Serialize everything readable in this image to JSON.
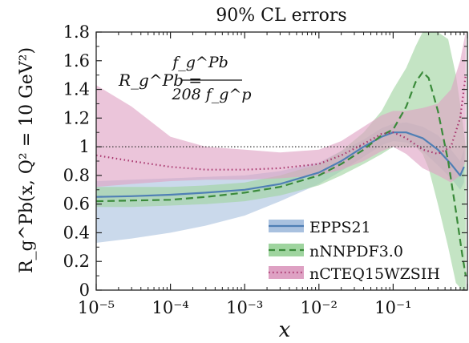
{
  "chart_data": {
    "type": "line",
    "title": "90% CL errors",
    "xlabel": "x",
    "ylabel": "R_g^Pb(x, Q² = 10 GeV²)",
    "x_scale": "log",
    "xlim": [
      1e-05,
      1
    ],
    "ylim": [
      0,
      1.8
    ],
    "x_ticks": [
      "10⁻⁵",
      "10⁻⁴",
      "10⁻³",
      "10⁻²",
      "10⁻¹"
    ],
    "y_ticks": [
      "0",
      "0.2",
      "0.4",
      "0.6",
      "0.8",
      "1",
      "1.2",
      "1.4",
      "1.6",
      "1.8"
    ],
    "reference_line": 1,
    "annotation": {
      "lhs": "R_g^Pb =",
      "numerator": "f_g^Pb",
      "denominator": "208 f_g^p"
    },
    "legend_position": "bottom-right",
    "series": [
      {
        "name": "EPPS21",
        "color": "#4f7fb5",
        "band_color": "#a9c1df",
        "line_style": "solid",
        "x": [
          1e-05,
          3e-05,
          0.0001,
          0.0003,
          0.001,
          0.003,
          0.01,
          0.02,
          0.04,
          0.07,
          0.1,
          0.15,
          0.25,
          0.4,
          0.6,
          0.8,
          0.9
        ],
        "y": [
          0.65,
          0.655,
          0.665,
          0.68,
          0.7,
          0.74,
          0.82,
          0.9,
          1.0,
          1.07,
          1.1,
          1.1,
          1.06,
          0.98,
          0.88,
          0.8,
          0.86
        ],
        "lower": [
          0.33,
          0.36,
          0.4,
          0.45,
          0.52,
          0.62,
          0.74,
          0.83,
          0.93,
          1.01,
          1.04,
          1.03,
          0.97,
          0.87,
          0.78,
          0.7,
          0.75
        ],
        "upper": [
          0.76,
          0.77,
          0.78,
          0.79,
          0.8,
          0.83,
          0.89,
          0.97,
          1.05,
          1.13,
          1.16,
          1.17,
          1.14,
          1.08,
          0.98,
          0.9,
          0.98
        ]
      },
      {
        "name": "nNNPDF3.0",
        "color": "#3a8a3a",
        "band_color": "#9fd49f",
        "line_style": "dashed",
        "x": [
          1e-05,
          3e-05,
          0.0001,
          0.0003,
          0.001,
          0.003,
          0.01,
          0.02,
          0.04,
          0.07,
          0.1,
          0.15,
          0.2,
          0.25,
          0.3,
          0.4,
          0.55,
          0.7,
          0.85,
          0.95
        ],
        "y": [
          0.62,
          0.625,
          0.63,
          0.65,
          0.68,
          0.72,
          0.8,
          0.88,
          0.98,
          1.08,
          1.12,
          1.28,
          1.45,
          1.52,
          1.48,
          1.25,
          0.9,
          0.55,
          0.25,
          0.1
        ],
        "lower": [
          0.58,
          0.58,
          0.59,
          0.6,
          0.62,
          0.66,
          0.73,
          0.8,
          0.88,
          0.95,
          1.0,
          1.0,
          1.0,
          0.95,
          0.85,
          0.6,
          0.3,
          0.05,
          0.0,
          0.0
        ],
        "upper": [
          0.72,
          0.72,
          0.72,
          0.73,
          0.75,
          0.8,
          0.88,
          0.97,
          1.1,
          1.25,
          1.4,
          1.55,
          1.7,
          1.8,
          1.8,
          1.8,
          1.75,
          1.5,
          1.2,
          1.0
        ]
      },
      {
        "name": "nCTEQ15WZSIH",
        "color": "#a8356d",
        "band_color": "#dea1c3",
        "line_style": "dotted",
        "x": [
          1e-05,
          3e-05,
          0.0001,
          0.0003,
          0.001,
          0.003,
          0.01,
          0.02,
          0.04,
          0.07,
          0.1,
          0.15,
          0.25,
          0.4,
          0.6,
          0.8,
          0.95
        ],
        "y": [
          0.94,
          0.9,
          0.86,
          0.84,
          0.84,
          0.85,
          0.88,
          0.94,
          1.02,
          1.09,
          1.1,
          1.06,
          0.98,
          0.95,
          1.0,
          1.2,
          1.5
        ],
        "lower": [
          0.72,
          0.74,
          0.76,
          0.77,
          0.77,
          0.78,
          0.8,
          0.84,
          0.9,
          0.97,
          1.0,
          0.95,
          0.85,
          0.8,
          0.75,
          0.8,
          0.9
        ],
        "upper": [
          1.43,
          1.28,
          1.07,
          1.0,
          0.98,
          0.96,
          0.98,
          1.04,
          1.14,
          1.22,
          1.25,
          1.25,
          1.27,
          1.3,
          1.4,
          1.6,
          1.8
        ]
      }
    ]
  }
}
